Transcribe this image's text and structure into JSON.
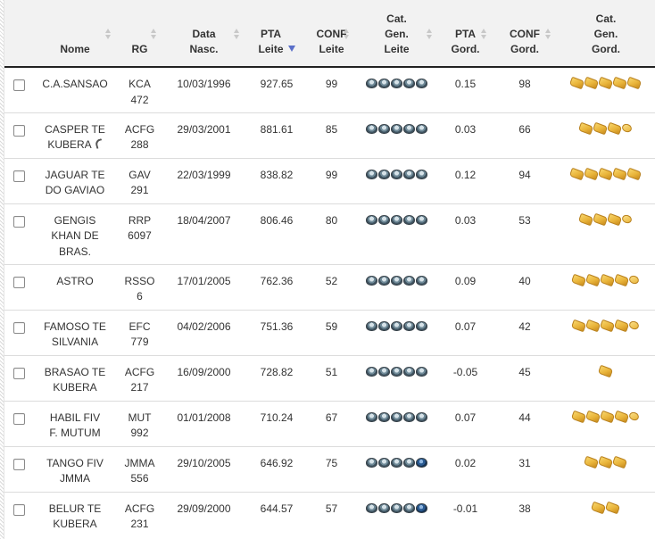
{
  "table": {
    "columns": [
      {
        "id": "nome",
        "label": "Nome",
        "sortable": true
      },
      {
        "id": "rg",
        "label": "RG",
        "sortable": true
      },
      {
        "id": "data",
        "label": "Data\nNasc.",
        "sortable": true
      },
      {
        "id": "pta_leite",
        "label": "PTA\nLeite",
        "sortable": true,
        "sorted": "desc"
      },
      {
        "id": "conf_leite",
        "label": "CONF\nLeite",
        "sortable": true
      },
      {
        "id": "cat_leite",
        "label": "Cat.\nGen.\nLeite",
        "sortable": true
      },
      {
        "id": "pta_gord",
        "label": "PTA\nGord.",
        "sortable": true
      },
      {
        "id": "conf_gord",
        "label": "CONF\nGord.",
        "sortable": true
      },
      {
        "id": "cat_gord",
        "label": "Cat.\nGen.\nGord.",
        "sortable": false
      }
    ],
    "rows": [
      {
        "nome": "C.A.SANSAO",
        "rg": "KCA\n472",
        "data": "10/03/1996",
        "pta_leite": "927.65",
        "conf_leite": "99",
        "cat_leite": [
          "cow-icon",
          "cow-icon",
          "cow-icon",
          "cow-icon",
          "cow-icon"
        ],
        "pta_gord": "0.15",
        "conf_gord": "98",
        "cat_gord": [
          "butter-icon",
          "butter-icon",
          "butter-icon",
          "butter-icon",
          "butter-icon"
        ]
      },
      {
        "nome": "CASPER TE\nKUBERA",
        "rg": "ACFG\n288",
        "data": "29/03/2001",
        "pta_leite": "881.61",
        "conf_leite": "85",
        "cat_leite": [
          "cow-icon",
          "cow-icon",
          "cow-icon",
          "cow-icon",
          "cow-icon"
        ],
        "pta_gord": "0.03",
        "conf_gord": "66",
        "cat_gord": [
          "butter-icon",
          "butter-icon",
          "butter-icon",
          "butter-half-icon"
        ],
        "marker": "tail-icon"
      },
      {
        "nome": "JAGUAR TE\nDO GAVIAO",
        "rg": "GAV\n291",
        "data": "22/03/1999",
        "pta_leite": "838.82",
        "conf_leite": "99",
        "cat_leite": [
          "cow-icon",
          "cow-icon",
          "cow-icon",
          "cow-icon",
          "cow-icon"
        ],
        "pta_gord": "0.12",
        "conf_gord": "94",
        "cat_gord": [
          "butter-icon",
          "butter-icon",
          "butter-icon",
          "butter-icon",
          "butter-icon"
        ]
      },
      {
        "nome": "GENGIS\nKHAN DE\nBRAS.",
        "rg": "RRP\n6097",
        "data": "18/04/2007",
        "pta_leite": "806.46",
        "conf_leite": "80",
        "cat_leite": [
          "cow-icon",
          "cow-icon",
          "cow-icon",
          "cow-icon",
          "cow-icon"
        ],
        "pta_gord": "0.03",
        "conf_gord": "53",
        "cat_gord": [
          "butter-icon",
          "butter-icon",
          "butter-icon",
          "butter-half-icon"
        ]
      },
      {
        "nome": "ASTRO",
        "rg": "RSSO\n6",
        "data": "17/01/2005",
        "pta_leite": "762.36",
        "conf_leite": "52",
        "cat_leite": [
          "cow-icon",
          "cow-icon",
          "cow-icon",
          "cow-icon",
          "cow-icon"
        ],
        "pta_gord": "0.09",
        "conf_gord": "40",
        "cat_gord": [
          "butter-icon",
          "butter-icon",
          "butter-icon",
          "butter-icon",
          "butter-half-icon"
        ]
      },
      {
        "nome": "FAMOSO TE\nSILVANIA",
        "rg": "EFC\n779",
        "data": "04/02/2006",
        "pta_leite": "751.36",
        "conf_leite": "59",
        "cat_leite": [
          "cow-icon",
          "cow-icon",
          "cow-icon",
          "cow-icon",
          "cow-icon"
        ],
        "pta_gord": "0.07",
        "conf_gord": "42",
        "cat_gord": [
          "butter-icon",
          "butter-icon",
          "butter-icon",
          "butter-icon",
          "butter-half-icon"
        ]
      },
      {
        "nome": "BRASAO TE\nKUBERA",
        "rg": "ACFG\n217",
        "data": "16/09/2000",
        "pta_leite": "728.82",
        "conf_leite": "51",
        "cat_leite": [
          "cow-icon",
          "cow-icon",
          "cow-icon",
          "cow-icon",
          "cow-icon"
        ],
        "pta_gord": "-0.05",
        "conf_gord": "45",
        "cat_gord": [
          "butter-icon"
        ]
      },
      {
        "nome": "HABIL FIV\nF. MUTUM",
        "rg": "MUT\n992",
        "data": "01/01/2008",
        "pta_leite": "710.24",
        "conf_leite": "67",
        "cat_leite": [
          "cow-icon",
          "cow-icon",
          "cow-icon",
          "cow-icon",
          "cow-icon"
        ],
        "pta_gord": "0.07",
        "conf_gord": "44",
        "cat_gord": [
          "butter-icon",
          "butter-icon",
          "butter-icon",
          "butter-icon",
          "butter-half-icon"
        ]
      },
      {
        "nome": "TANGO FIV\nJMMA",
        "rg": "JMMA\n556",
        "data": "29/10/2005",
        "pta_leite": "646.92",
        "conf_leite": "75",
        "cat_leite": [
          "cow-icon",
          "cow-icon",
          "cow-icon",
          "cow-icon",
          "cow-dark-icon"
        ],
        "pta_gord": "0.02",
        "conf_gord": "31",
        "cat_gord": [
          "butter-icon",
          "butter-icon",
          "butter-icon"
        ]
      },
      {
        "nome": "BELUR TE\nKUBERA",
        "rg": "ACFG\n231",
        "data": "29/09/2000",
        "pta_leite": "644.57",
        "conf_leite": "57",
        "cat_leite": [
          "cow-icon",
          "cow-icon",
          "cow-icon",
          "cow-icon",
          "cow-dark-icon"
        ],
        "pta_gord": "-0.01",
        "conf_gord": "38",
        "cat_gord": [
          "butter-icon",
          "butter-icon"
        ]
      }
    ]
  },
  "colors": {
    "header_bg": "#f2f2f2",
    "sort_active": "#5a6fc9",
    "row_border": "#dcdcdc"
  }
}
